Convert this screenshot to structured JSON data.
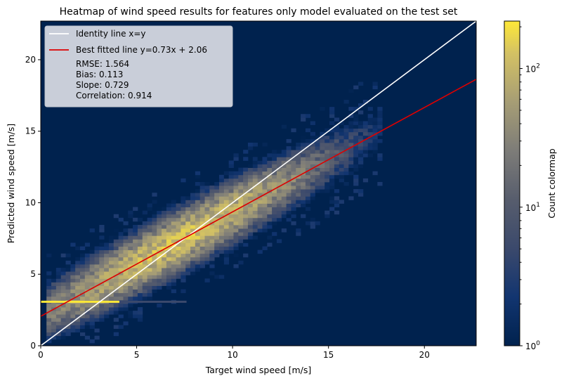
{
  "chart_data": {
    "type": "heatmap",
    "title": "Heatmap of wind speed results for features only model evaluated on the test set",
    "xlabel": "Target wind speed [m/s]",
    "ylabel": "Predicted wind speed [m/s]",
    "xlim": [
      0,
      22.7
    ],
    "ylim": [
      0,
      22.7
    ],
    "xticks": [
      0,
      5,
      10,
      15,
      20
    ],
    "yticks": [
      0,
      5,
      10,
      15,
      20
    ],
    "background_color": "#00224e",
    "colorbar": {
      "label": "Count colormap",
      "scale": "log",
      "range": [
        1,
        220
      ],
      "tick_labels": [
        "10^0",
        "10^1",
        "10^2"
      ],
      "tick_values": [
        1,
        10,
        100
      ],
      "colormap": "cividis"
    },
    "series": [
      {
        "name": "Identity line x=y",
        "color": "#ffffff",
        "slope": 1.0,
        "intercept": 0.0
      },
      {
        "name": "Best fitted line y=0.73x + 2.06",
        "color": "#dd0000",
        "slope": 0.73,
        "intercept": 2.06
      }
    ],
    "legend": {
      "placement": "top-left",
      "stats": [
        "RMSE: 1.564",
        "Bias: 0.113",
        "Slope: 0.729",
        "Correlation: 0.914"
      ]
    },
    "density_model": {
      "description": "2D histogram of (target, predicted) counts; dense ridge around the fitted line, saturated floor row at predicted ~3.1 for targets 0-4.1",
      "floor_row": {
        "y": 3.1,
        "x_range": [
          0,
          4.1
        ],
        "count": 220
      },
      "ridge_spread": 1.3,
      "x_range": [
        0.3,
        17.8
      ]
    },
    "bin_size": 0.25
  }
}
